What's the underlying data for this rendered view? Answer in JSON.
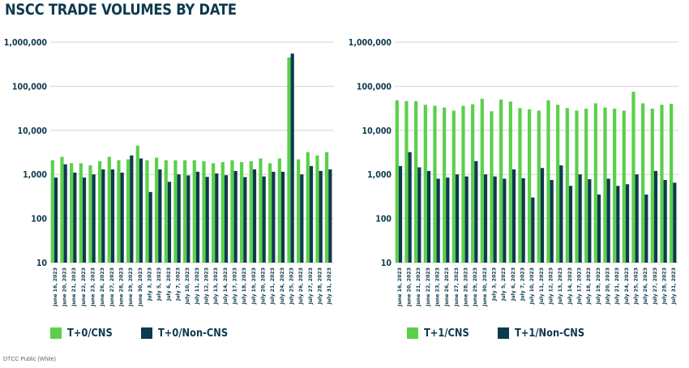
{
  "page": {
    "title": "NSCC TRADE VOLUMES BY DATE",
    "footer": "DTCC Public (White)"
  },
  "colors": {
    "green": "#5ad04a",
    "navy": "#0d3a4e",
    "grid": "#d4d4d4"
  },
  "chart_data": [
    {
      "type": "bar",
      "scale": "log",
      "ylim": [
        10,
        1000000
      ],
      "yticks": [
        10,
        100,
        1000,
        10000,
        100000,
        1000000
      ],
      "ytick_labels": [
        "10",
        "100",
        "1,000",
        "10,000",
        "100,000",
        "1,000,000"
      ],
      "categories": [
        "June 16, 2023",
        "June 20, 2023",
        "June 21, 2023",
        "June 22, 2023",
        "June 23, 2023",
        "June 26, 2023",
        "June 27, 2023",
        "June 28, 2023",
        "June 29, 2023",
        "June 30, 2023",
        "July 3, 2023",
        "July 5, 2023",
        "July 6, 2023",
        "July 7, 2023",
        "July 10, 2023",
        "July 11, 2023",
        "July 12, 2023",
        "July 13, 2023",
        "July 14, 2023",
        "July 17, 2023",
        "July 18, 2023",
        "July 19, 2023",
        "July 20, 2023",
        "July 21, 2023",
        "July 24, 2023",
        "July 25, 2023",
        "July 26, 2023",
        "July 27, 2023",
        "July 28, 2023",
        "July 31, 2023"
      ],
      "series": [
        {
          "name": "T+0/CNS",
          "color": "#5ad04a",
          "values": [
            2100,
            2500,
            1800,
            1800,
            1600,
            2000,
            2500,
            2100,
            2200,
            4500,
            2100,
            2400,
            2100,
            2100,
            2100,
            2100,
            2000,
            1800,
            1900,
            2100,
            1900,
            2000,
            2300,
            1800,
            2300,
            450000,
            2200,
            3200,
            2700,
            3200
          ]
        },
        {
          "name": "T+0/Non-CNS",
          "color": "#0d3a4e",
          "values": [
            850,
            1700,
            1100,
            850,
            1000,
            1300,
            1300,
            1100,
            2700,
            2300,
            400,
            1300,
            680,
            1000,
            950,
            1150,
            880,
            1050,
            960,
            1200,
            870,
            1300,
            900,
            1150,
            1150,
            550000,
            1000,
            1550,
            1200,
            1300
          ]
        }
      ]
    },
    {
      "type": "bar",
      "scale": "log",
      "ylim": [
        10,
        1000000
      ],
      "yticks": [
        10,
        100,
        1000,
        10000,
        100000,
        1000000
      ],
      "ytick_labels": [
        "10",
        "100",
        "1,000",
        "10,000",
        "100,000",
        "1,000,000"
      ],
      "categories": [
        "June 16, 2023",
        "June 20, 2023",
        "June 21, 2023",
        "June 22, 2023",
        "June 23, 2023",
        "June 26, 2023",
        "June 27, 2023",
        "June 28, 2023",
        "June 29, 2023",
        "June 30, 2023",
        "July 3, 2023",
        "July 5, 2023",
        "July 6, 2023",
        "July 7, 2023",
        "July 10, 2023",
        "July 11, 2023",
        "July 12, 2023",
        "July 13, 2023",
        "July 14, 2023",
        "July 17, 2023",
        "July 18, 2023",
        "July 19, 2023",
        "July 20, 2023",
        "July 21, 2023",
        "July 24, 2023",
        "July 25, 2023",
        "July 26, 2023",
        "July 27, 2023",
        "July 28, 2023",
        "July 31, 2023"
      ],
      "series": [
        {
          "name": "T+1/CNS",
          "color": "#5ad04a",
          "values": [
            48000,
            46000,
            46000,
            38000,
            36000,
            33000,
            28000,
            36000,
            39000,
            52000,
            27000,
            50000,
            45000,
            32000,
            30000,
            28000,
            48000,
            38000,
            32000,
            28000,
            31000,
            41000,
            33000,
            31000,
            28000,
            75000,
            41000,
            31000,
            38000,
            40000
          ]
        },
        {
          "name": "T+1/Non-CNS",
          "color": "#0d3a4e",
          "values": [
            1550,
            3200,
            1450,
            1200,
            800,
            850,
            1000,
            900,
            2000,
            1000,
            900,
            800,
            1300,
            820,
            300,
            1400,
            750,
            1600,
            550,
            1000,
            780,
            350,
            800,
            550,
            600,
            1000,
            350,
            1200,
            750,
            650
          ]
        }
      ]
    }
  ]
}
